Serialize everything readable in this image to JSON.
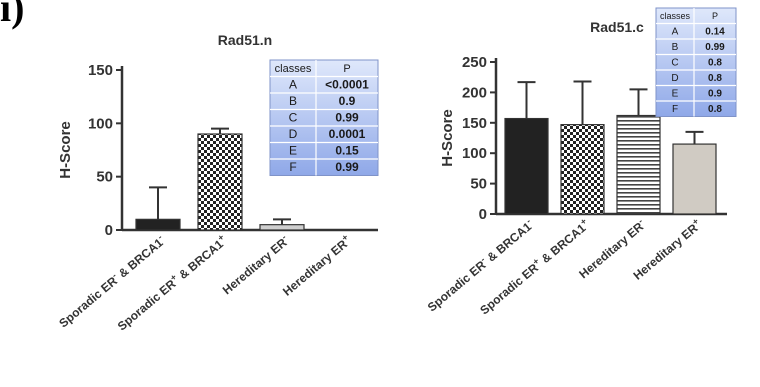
{
  "panel_label": "i)",
  "chart_data": [
    {
      "type": "bar",
      "title": "Rad51.n",
      "xlabel": "",
      "ylabel": "H-Score",
      "ylim": [
        0,
        150
      ],
      "yticks": [
        0,
        50,
        100,
        150
      ],
      "categories": [
        {
          "base": "Sporadic ER",
          "sup1": "-",
          "mid": " & BRCA1",
          "sup2": "-"
        },
        {
          "base": "Sporadic ER",
          "sup1": "+",
          "mid": " & BRCA1",
          "sup2": "+"
        },
        {
          "base": "Hereditary ER",
          "sup1": "-",
          "mid": "",
          "sup2": ""
        },
        {
          "base": "Hereditary ER",
          "sup1": "+",
          "mid": "",
          "sup2": ""
        }
      ],
      "values": [
        10,
        90,
        5,
        0
      ],
      "error": [
        40,
        95,
        10,
        0
      ],
      "fills": [
        "#222222",
        "checker",
        "#cfcfcf",
        "#ffffff"
      ],
      "table": {
        "headers": [
          "classes",
          "P"
        ],
        "rows": [
          [
            "A",
            "<0.0001"
          ],
          [
            "B",
            "0.9"
          ],
          [
            "C",
            "0.99"
          ],
          [
            "D",
            "0.0001"
          ],
          [
            "E",
            "0.15"
          ],
          [
            "F",
            "0.99"
          ]
        ]
      }
    },
    {
      "type": "bar",
      "title": "Rad51.c",
      "xlabel": "",
      "ylabel": "H-Score",
      "ylim": [
        0,
        250
      ],
      "yticks": [
        0,
        50,
        100,
        150,
        200,
        250
      ],
      "categories": [
        {
          "base": "Sporadic ER",
          "sup1": "-",
          "mid": " & BRCA1",
          "sup2": "-"
        },
        {
          "base": "Sporadic ER",
          "sup1": "+",
          "mid": " & BRCA1",
          "sup2": "+"
        },
        {
          "base": "Hereditary ER",
          "sup1": "-",
          "mid": "",
          "sup2": ""
        },
        {
          "base": "Hereditary ER",
          "sup1": "+",
          "mid": "",
          "sup2": ""
        }
      ],
      "values": [
        157,
        147,
        162,
        115
      ],
      "error": [
        217,
        218,
        205,
        135
      ],
      "fills": [
        "#222222",
        "checker",
        "hstripes",
        "#d0cbc3"
      ],
      "table": {
        "headers": [
          "classes",
          "P"
        ],
        "rows": [
          [
            "A",
            "0.14"
          ],
          [
            "B",
            "0.99"
          ],
          [
            "C",
            "0.8"
          ],
          [
            "D",
            "0.8"
          ],
          [
            "E",
            "0.9"
          ],
          [
            "F",
            "0.8"
          ]
        ]
      }
    }
  ]
}
